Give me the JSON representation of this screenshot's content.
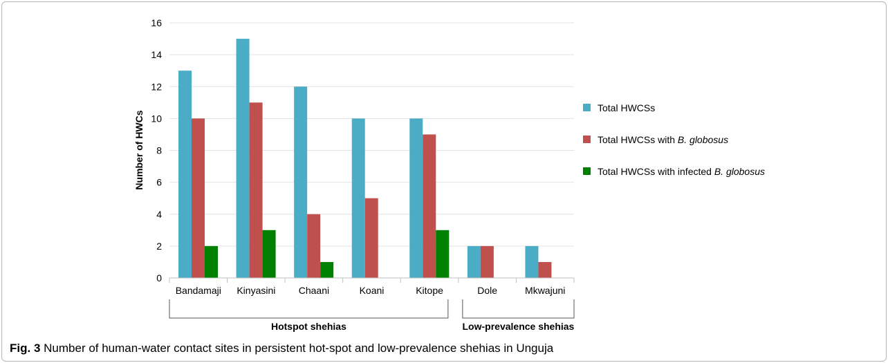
{
  "chart_data": {
    "type": "bar",
    "ylabel": "Number of HWCs",
    "ylim": [
      0,
      16
    ],
    "yticks": [
      0,
      2,
      4,
      6,
      8,
      10,
      12,
      14,
      16
    ],
    "categories": [
      "Bandamaji",
      "Kinyasini",
      "Chaani",
      "Koani",
      "Kitope",
      "Dole",
      "Mkwajuni"
    ],
    "series": [
      {
        "name": "Total HWCSs",
        "color": "#4bacc6",
        "values": [
          13,
          15,
          12,
          10,
          10,
          2,
          2
        ]
      },
      {
        "name": "Total HWCSs with",
        "name_italic": "B. globosus",
        "color": "#c0504d",
        "values": [
          10,
          11,
          4,
          5,
          9,
          2,
          1
        ]
      },
      {
        "name": "Total HWCSs with infected",
        "name_italic": "B. globosus",
        "color": "#008000",
        "values": [
          2,
          3,
          1,
          0,
          3,
          0,
          0
        ]
      }
    ],
    "legend_position": "right",
    "grid": true,
    "groups": [
      {
        "label": "Hotspot shehias",
        "categories": [
          "Bandamaji",
          "Kinyasini",
          "Chaani",
          "Koani",
          "Kitope"
        ]
      },
      {
        "label": "Low-prevalence shehias",
        "categories": [
          "Dole",
          "Mkwajuni"
        ]
      }
    ]
  },
  "caption": {
    "label": "Fig. 3",
    "text": "Number of human-water contact sites in persistent hot-spot and low-prevalence shehias in Unguja"
  }
}
